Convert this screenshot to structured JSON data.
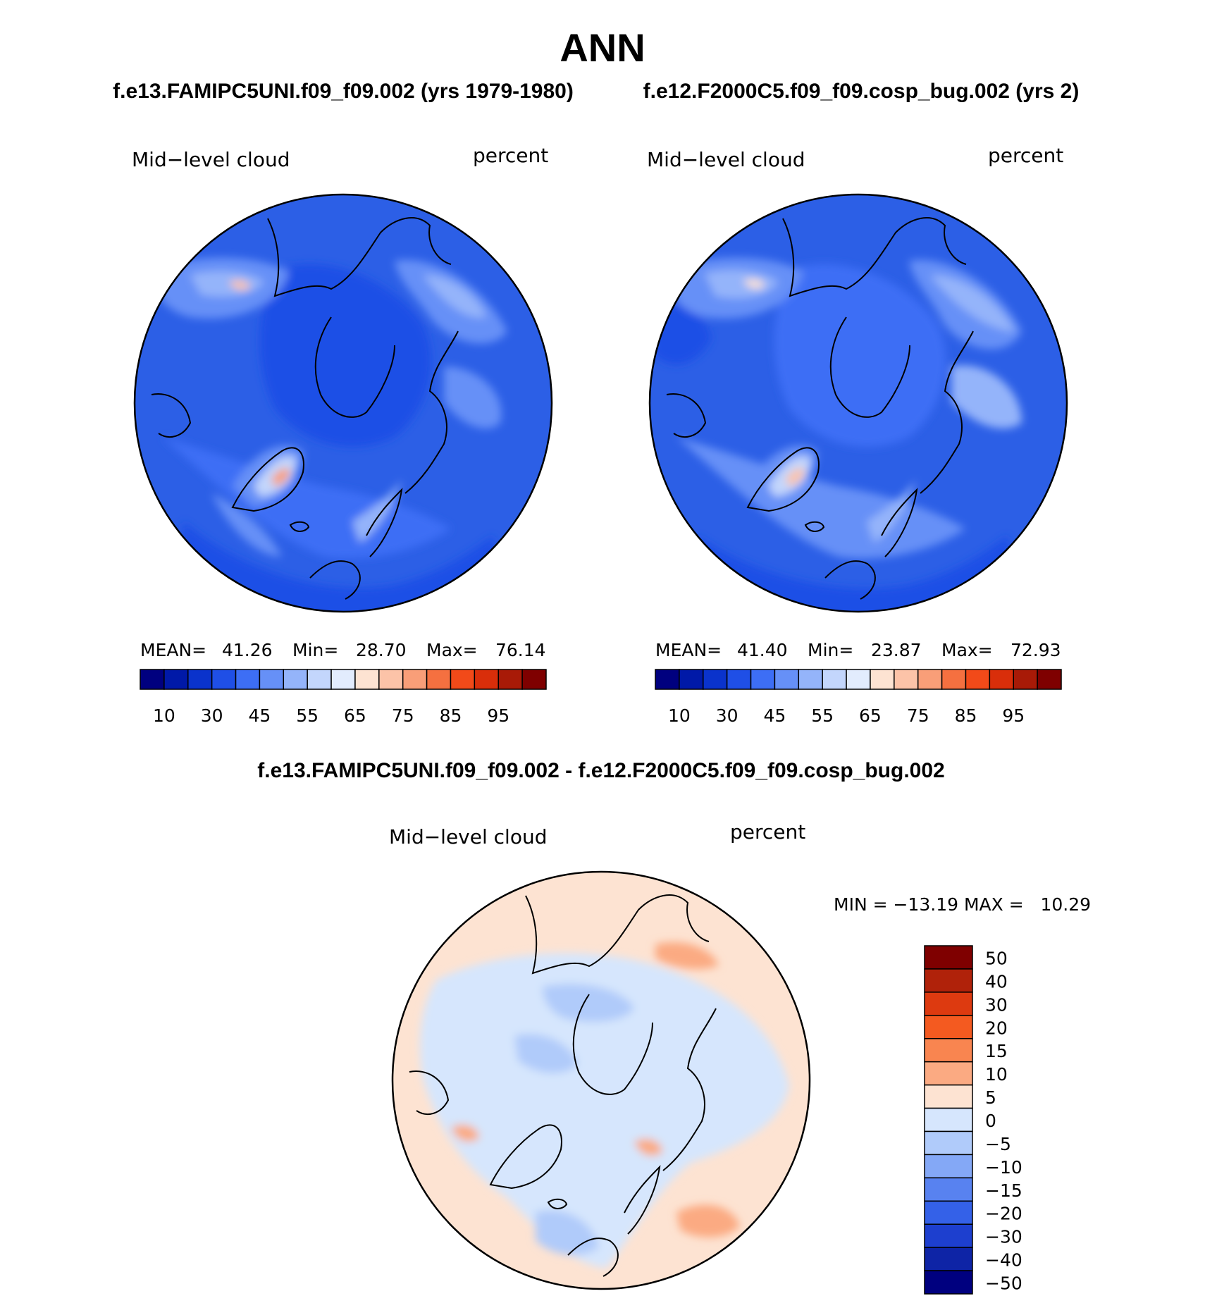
{
  "title": "ANN",
  "subtitles": {
    "left": "f.e13.FAMIPC5UNI.f09_f09.002 (yrs 1979-1980)",
    "right": "f.e12.F2000C5.f09_f09.cosp_bug.002 (yrs 2)"
  },
  "diff_title": "f.e13.FAMIPC5UNI.f09_f09.002 - f.e12.F2000C5.f09_f09.cosp_bug.002",
  "panel_left": {
    "variable": "Mid−level cloud",
    "units": "percent",
    "stats": {
      "mean_label": "MEAN=",
      "mean": "41.26",
      "min_label": "Min=",
      "min": "28.70",
      "max_label": "Max=",
      "max": "76.14"
    }
  },
  "panel_right": {
    "variable": "Mid−level cloud",
    "units": "percent",
    "stats": {
      "mean_label": "MEAN=",
      "mean": "41.40",
      "min_label": "Min=",
      "min": "23.87",
      "max_label": "Max=",
      "max": "72.93"
    }
  },
  "panel_diff": {
    "variable": "Mid−level cloud",
    "units": "percent",
    "stats_text": "MIN = −13.19 MAX =   10.29"
  },
  "colors": {
    "abs_colorbar": [
      "#00007f",
      "#0019a8",
      "#0a33cc",
      "#1f4fe6",
      "#3d6ef5",
      "#6690f7",
      "#94b4fa",
      "#c3d6fc",
      "#e2ecfd",
      "#fde3d2",
      "#fcc3a8",
      "#f99e78",
      "#f57040",
      "#f24a19",
      "#d92e0a",
      "#a81a07",
      "#7f0000"
    ],
    "diff_colorbar": [
      "#7f0000",
      "#b0220a",
      "#dd3a10",
      "#f45a20",
      "#f98550",
      "#fbaa82",
      "#fde3d2",
      "#d6e6fd",
      "#b0cbfa",
      "#84a8f6",
      "#5882f0",
      "#3461e8",
      "#1d3fcf",
      "#0e24a6",
      "#00007f"
    ],
    "ocean_abs": "#2c5fe6",
    "ocean_diff": "#fde3d2",
    "outline": "#000000"
  },
  "chart_data": [
    {
      "type": "heatmap",
      "projection": "north-polar-stereographic",
      "title": "f.e13.FAMIPC5UNI.f09_f09.002 (yrs 1979-1980)",
      "variable": "Mid-level cloud",
      "units": "percent",
      "colorbar_levels": [
        10,
        20,
        30,
        35,
        40,
        45,
        50,
        55,
        60,
        65,
        70,
        75,
        80,
        85,
        90,
        95
      ],
      "colorbar_tick_labels": [
        "10",
        "30",
        "45",
        "55",
        "65",
        "75",
        "85",
        "95"
      ],
      "mean": 41.26,
      "min": 28.7,
      "max": 76.14
    },
    {
      "type": "heatmap",
      "projection": "north-polar-stereographic",
      "title": "f.e12.F2000C5.f09_f09.cosp_bug.002 (yrs 2)",
      "variable": "Mid-level cloud",
      "units": "percent",
      "colorbar_levels": [
        10,
        20,
        30,
        35,
        40,
        45,
        50,
        55,
        60,
        65,
        70,
        75,
        80,
        85,
        90,
        95
      ],
      "colorbar_tick_labels": [
        "10",
        "30",
        "45",
        "55",
        "65",
        "75",
        "85",
        "95"
      ],
      "mean": 41.4,
      "min": 23.87,
      "max": 72.93
    },
    {
      "type": "heatmap",
      "projection": "north-polar-stereographic",
      "title": "f.e13.FAMIPC5UNI.f09_f09.002 - f.e12.F2000C5.f09_f09.cosp_bug.002",
      "variable": "Mid-level cloud",
      "units": "percent",
      "colorbar_levels": [
        50,
        40,
        30,
        20,
        15,
        10,
        5,
        0,
        -5,
        -10,
        -15,
        -20,
        -30,
        -40,
        -50
      ],
      "colorbar_tick_labels": [
        "50",
        "40",
        "30",
        "20",
        "15",
        "10",
        "5",
        "0",
        "−5",
        "−10",
        "−15",
        "−20",
        "−30",
        "−40",
        "−50"
      ],
      "min": -13.19,
      "max": 10.29
    }
  ]
}
